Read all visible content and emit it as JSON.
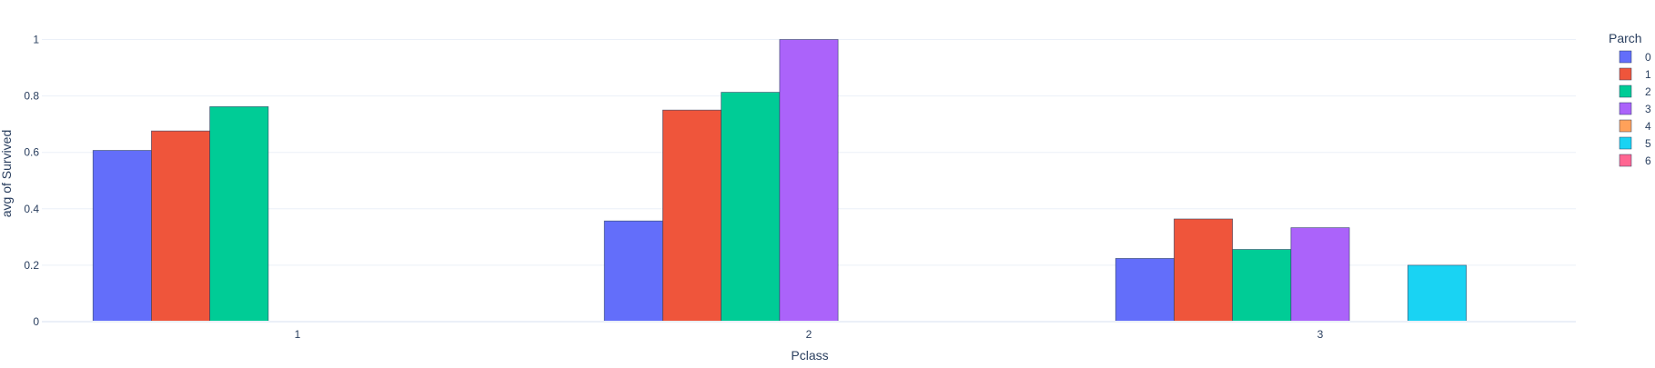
{
  "chart_data": {
    "type": "bar",
    "xlabel": "Pclass",
    "ylabel": "avg of Survived",
    "categories": [
      "1",
      "2",
      "3"
    ],
    "ylim": [
      0,
      1.05
    ],
    "yticks": [
      "0",
      "0.2",
      "0.4",
      "0.6",
      "0.8",
      "1"
    ],
    "ytick_values": [
      0,
      0.2,
      0.4,
      0.6,
      0.8,
      1
    ],
    "grid": true,
    "legend": {
      "title": "Parch",
      "position": "right"
    },
    "series": [
      {
        "name": "0",
        "color": "#636efa",
        "values": [
          0.607,
          0.357,
          0.224
        ]
      },
      {
        "name": "1",
        "color": "#ef553b",
        "values": [
          0.676,
          0.75,
          0.364
        ]
      },
      {
        "name": "2",
        "color": "#00cc96",
        "values": [
          0.762,
          0.813,
          0.256
        ]
      },
      {
        "name": "3",
        "color": "#ab63fa",
        "values": [
          null,
          1.0,
          0.333
        ]
      },
      {
        "name": "4",
        "color": "#ffa15a",
        "values": [
          0,
          null,
          0
        ]
      },
      {
        "name": "5",
        "color": "#19d3f3",
        "values": [
          null,
          0,
          0.2
        ]
      },
      {
        "name": "6",
        "color": "#ff6692",
        "values": [
          null,
          null,
          0
        ]
      }
    ]
  }
}
